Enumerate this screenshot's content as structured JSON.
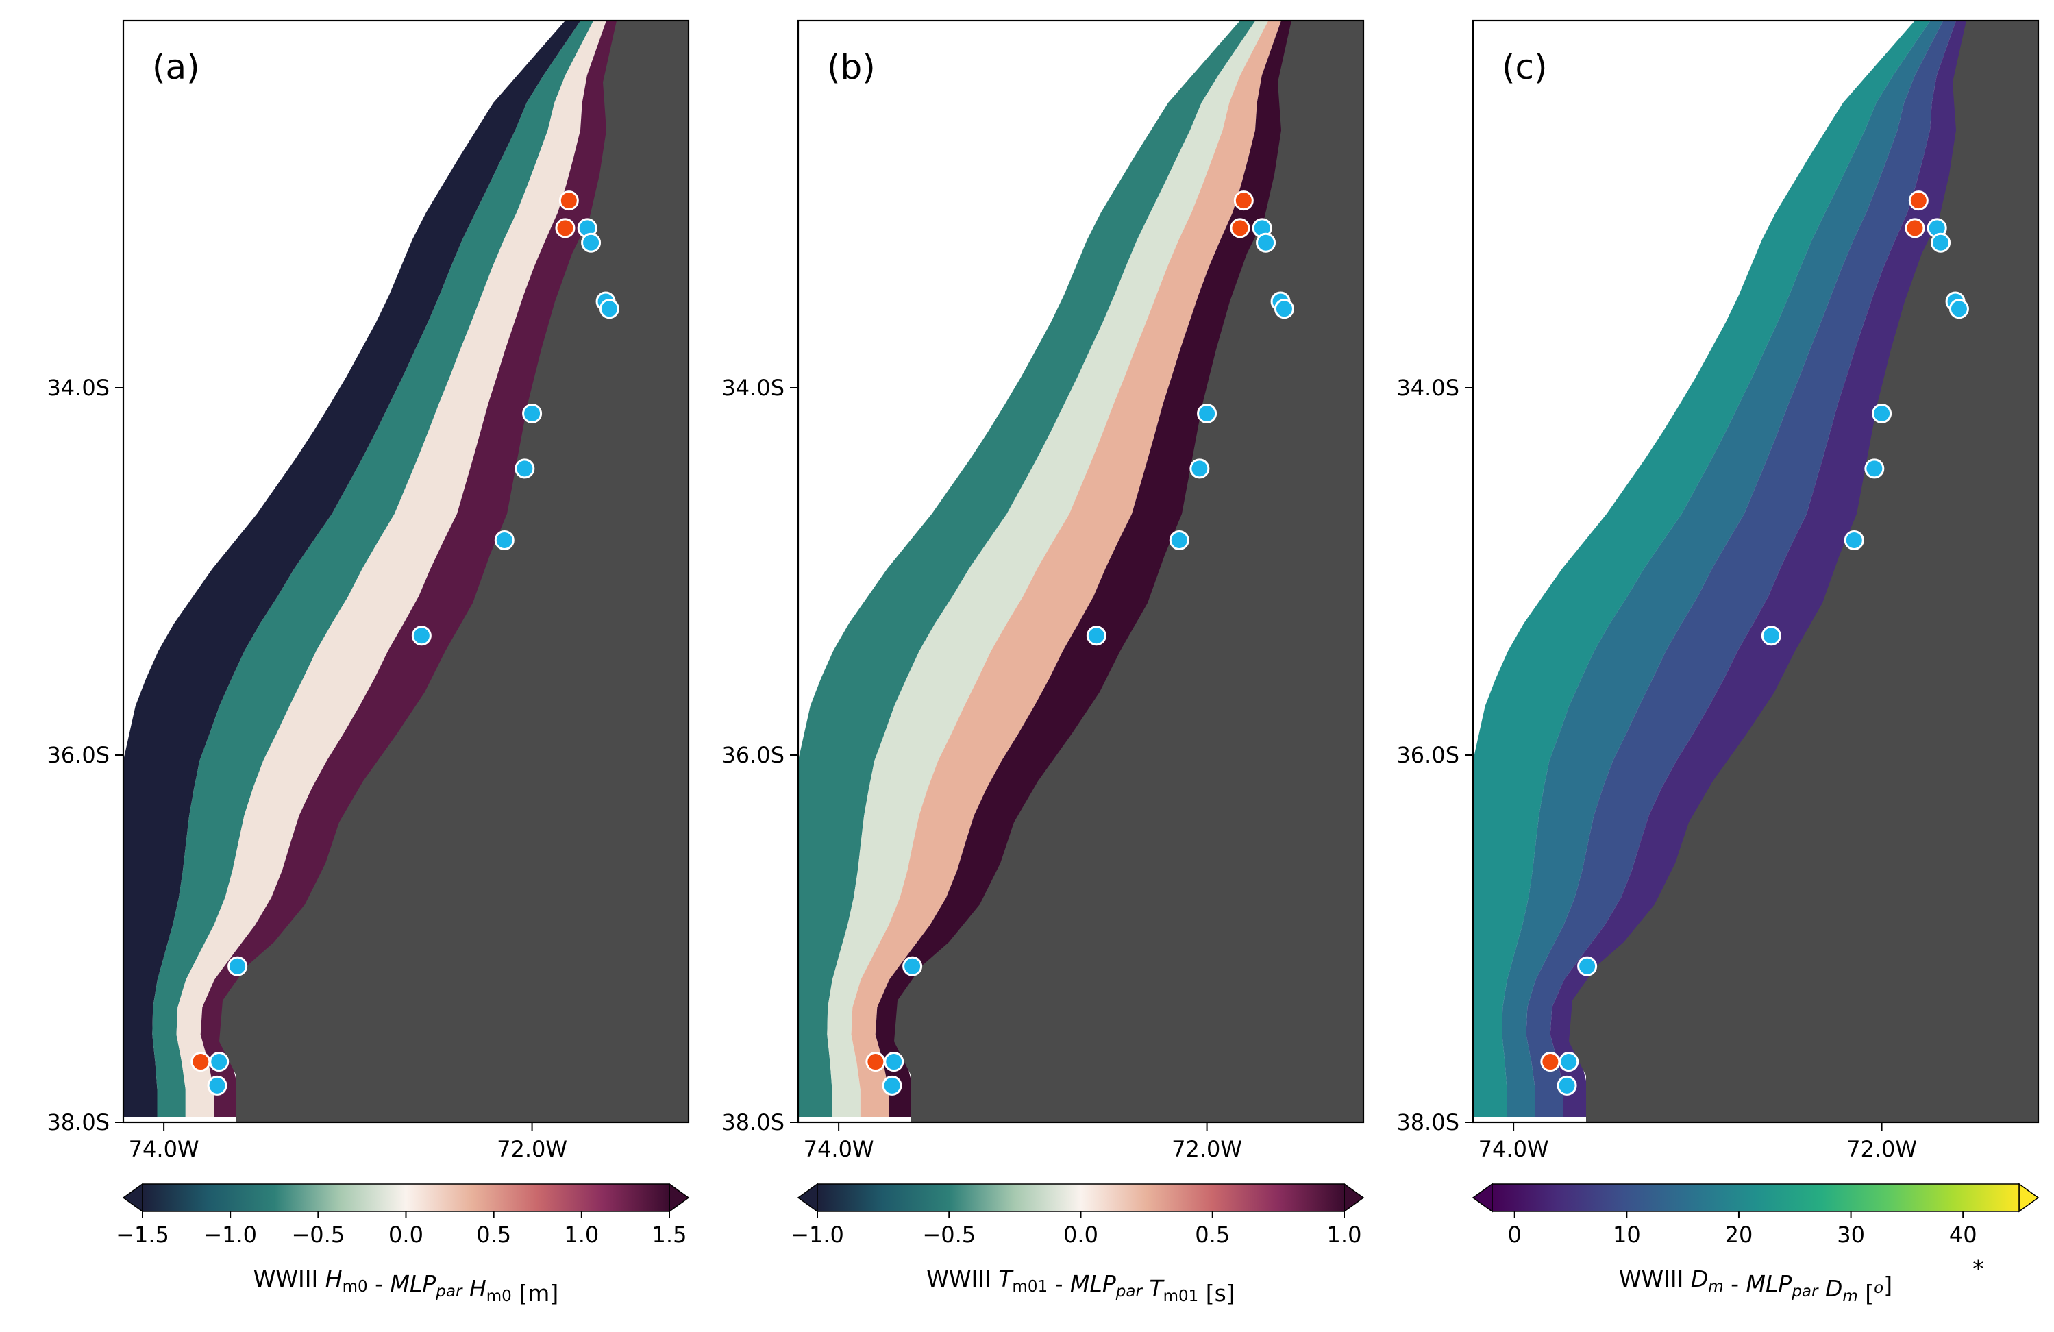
{
  "chart_data": [
    {
      "type": "heatmap",
      "panel_label": "(a)",
      "x_ticks": [
        {
          "value": -74.0,
          "label": "74.0W"
        },
        {
          "value": -72.0,
          "label": "72.0W"
        }
      ],
      "y_ticks": [
        {
          "value": -34.0,
          "label": "34.0S"
        },
        {
          "value": -36.0,
          "label": "36.0S"
        },
        {
          "value": -38.0,
          "label": "38.0S"
        }
      ],
      "xlim": [
        -74.22,
        -71.15
      ],
      "ylim": [
        -38.0,
        -32.0
      ],
      "colormap": "diverging teal-white-maroon",
      "colorbar": {
        "label_parts": [
          {
            "text": "WWIII ",
            "italic": false
          },
          {
            "text": "H",
            "italic": true
          },
          {
            "text": "m0",
            "italic": false,
            "sub": true
          },
          {
            "text": " - ",
            "italic": false
          },
          {
            "text": "MLP",
            "italic": true
          },
          {
            "text": "par",
            "italic": true,
            "sub": true
          },
          {
            "text": " ",
            "italic": false
          },
          {
            "text": "H",
            "italic": true
          },
          {
            "text": "m0",
            "italic": false,
            "sub": true
          },
          {
            "text": " [m]",
            "italic": false
          }
        ],
        "range": [
          -1.5,
          1.5
        ],
        "ticks": [
          "−1.5",
          "−1.0",
          "−0.5",
          "0.0",
          "0.5",
          "1.0",
          "1.5"
        ],
        "extend": "both",
        "colors": [
          "#1c1f3a",
          "#1f5a6a",
          "#2e8078",
          "#a7c9b0",
          "#faf3ee",
          "#e8b29c",
          "#c9686c",
          "#8a2e5e",
          "#3a0b2e"
        ]
      }
    },
    {
      "type": "heatmap",
      "panel_label": "(b)",
      "x_ticks": [
        {
          "value": -74.0,
          "label": "74.0W"
        },
        {
          "value": -72.0,
          "label": "72.0W"
        }
      ],
      "y_ticks": [
        {
          "value": -34.0,
          "label": "34.0S"
        },
        {
          "value": -36.0,
          "label": "36.0S"
        },
        {
          "value": -38.0,
          "label": "38.0S"
        }
      ],
      "xlim": [
        -74.22,
        -71.15
      ],
      "ylim": [
        -38.0,
        -32.0
      ],
      "colormap": "diverging teal-white-maroon",
      "colorbar": {
        "label_parts": [
          {
            "text": "WWIII ",
            "italic": false
          },
          {
            "text": "T",
            "italic": true
          },
          {
            "text": "m01",
            "italic": false,
            "sub": true
          },
          {
            "text": " - ",
            "italic": false
          },
          {
            "text": "MLP",
            "italic": true
          },
          {
            "text": "par",
            "italic": true,
            "sub": true
          },
          {
            "text": " ",
            "italic": false
          },
          {
            "text": "T",
            "italic": true
          },
          {
            "text": "m01",
            "italic": false,
            "sub": true
          },
          {
            "text": " [s]",
            "italic": false
          }
        ],
        "range": [
          -1.0,
          1.0
        ],
        "ticks": [
          "−1.0",
          "−0.5",
          "0.0",
          "0.5",
          "1.0"
        ],
        "extend": "both",
        "colors": [
          "#1c1f3a",
          "#1f5a6a",
          "#2e8078",
          "#a7c9b0",
          "#faf3ee",
          "#e8b29c",
          "#c9686c",
          "#8a2e5e",
          "#3a0b2e"
        ]
      }
    },
    {
      "type": "heatmap",
      "panel_label": "(c)",
      "x_ticks": [
        {
          "value": -74.0,
          "label": "74.0W"
        },
        {
          "value": -72.0,
          "label": "72.0W"
        }
      ],
      "y_ticks": [
        {
          "value": -34.0,
          "label": "34.0S"
        },
        {
          "value": -36.0,
          "label": "36.0S"
        },
        {
          "value": -38.0,
          "label": "38.0S"
        }
      ],
      "xlim": [
        -74.22,
        -71.15
      ],
      "ylim": [
        -38.0,
        -32.0
      ],
      "colormap": "viridis",
      "colorbar": {
        "label_parts": [
          {
            "text": "WWIII ",
            "italic": false
          },
          {
            "text": "D",
            "italic": true
          },
          {
            "text": "m",
            "italic": true,
            "sub": true
          },
          {
            "text": " - ",
            "italic": false
          },
          {
            "text": "MLP",
            "italic": true
          },
          {
            "text": "par",
            "italic": true,
            "sub": true
          },
          {
            "text": " ",
            "italic": false
          },
          {
            "text": "D",
            "italic": true
          },
          {
            "text": "m",
            "italic": true,
            "sub": true
          },
          {
            "text": " [",
            "italic": false
          },
          {
            "text": "o",
            "italic": true,
            "sup": true
          },
          {
            "text": "]",
            "italic": false
          }
        ],
        "asterisk": "*",
        "range": [
          -2,
          45
        ],
        "ticks": [
          "0",
          "10",
          "20",
          "30",
          "40"
        ],
        "tick_values": [
          0,
          10,
          20,
          30,
          40
        ],
        "extend": "both",
        "colors": [
          "#440154",
          "#472c7a",
          "#3b518b",
          "#2c718e",
          "#21908d",
          "#27ad81",
          "#5cc863",
          "#aadc32",
          "#fde725"
        ]
      }
    }
  ],
  "stations": {
    "red": [
      {
        "lon": -71.8,
        "lat": -32.98
      },
      {
        "lon": -71.82,
        "lat": -33.13
      },
      {
        "lon": -73.8,
        "lat": -37.67
      }
    ],
    "blue": [
      {
        "lon": -71.7,
        "lat": -33.13
      },
      {
        "lon": -71.68,
        "lat": -33.21
      },
      {
        "lon": -71.6,
        "lat": -33.53
      },
      {
        "lon": -71.58,
        "lat": -33.57
      },
      {
        "lon": -72.0,
        "lat": -34.14
      },
      {
        "lon": -72.04,
        "lat": -34.44
      },
      {
        "lon": -72.15,
        "lat": -34.83
      },
      {
        "lon": -72.6,
        "lat": -35.35
      },
      {
        "lon": -73.6,
        "lat": -37.15
      },
      {
        "lon": -73.7,
        "lat": -37.67
      },
      {
        "lon": -73.71,
        "lat": -37.8
      }
    ],
    "colors": {
      "red": "#f24a0d",
      "blue": "#1ab4ea"
    }
  },
  "land_color": "#4b4b4b"
}
